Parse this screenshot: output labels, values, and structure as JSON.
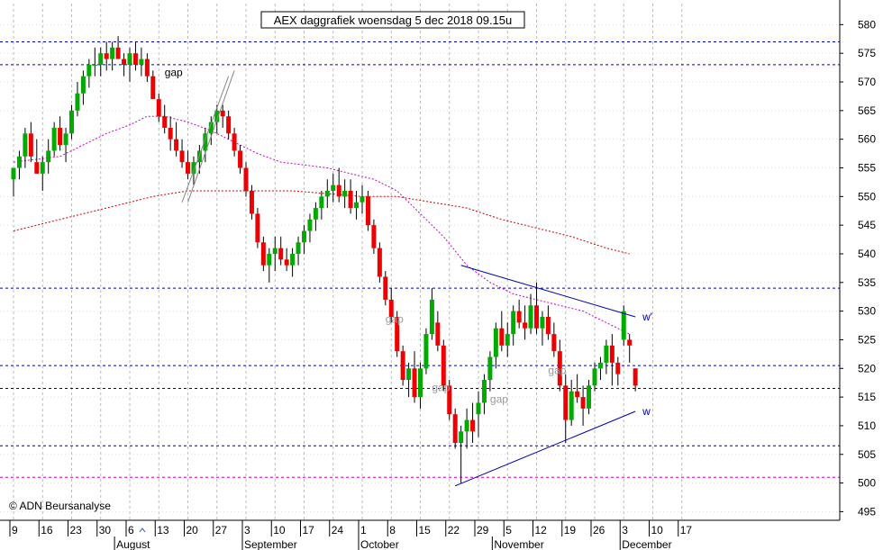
{
  "chart_data": {
    "type": "candlestick",
    "title": "AEX daggrafiek woensdag 5 dec 2018 09.15u",
    "copyright": "© ADN Beursanalyse",
    "ylim": [
      492,
      585
    ],
    "y_ticks": [
      495,
      500,
      505,
      510,
      515,
      520,
      525,
      530,
      535,
      540,
      545,
      550,
      555,
      560,
      565,
      570,
      575,
      580
    ],
    "x_day_ticks": [
      {
        "label": "9",
        "i": 0
      },
      {
        "label": "16",
        "i": 5
      },
      {
        "label": "23",
        "i": 10
      },
      {
        "label": "30",
        "i": 15
      },
      {
        "label": "6",
        "i": 20
      },
      {
        "label": "13",
        "i": 25
      },
      {
        "label": "20",
        "i": 30
      },
      {
        "label": "27",
        "i": 35
      },
      {
        "label": "3",
        "i": 40
      },
      {
        "label": "10",
        "i": 45
      },
      {
        "label": "17",
        "i": 50
      },
      {
        "label": "24",
        "i": 55
      },
      {
        "label": "1",
        "i": 60
      },
      {
        "label": "8",
        "i": 65
      },
      {
        "label": "15",
        "i": 70
      },
      {
        "label": "22",
        "i": 75
      },
      {
        "label": "29",
        "i": 80
      },
      {
        "label": "5",
        "i": 85
      },
      {
        "label": "12",
        "i": 90
      },
      {
        "label": "19",
        "i": 95
      },
      {
        "label": "26",
        "i": 100
      },
      {
        "label": "3",
        "i": 105
      },
      {
        "label": "10",
        "i": 110
      },
      {
        "label": "17",
        "i": 115
      }
    ],
    "x_month_ticks": [
      {
        "label": "August",
        "i": 18
      },
      {
        "label": "September",
        "i": 40
      },
      {
        "label": "October",
        "i": 60
      },
      {
        "label": "November",
        "i": 83
      },
      {
        "label": "December",
        "i": 105
      }
    ],
    "candles": [
      {
        "o": 553,
        "h": 555,
        "l": 550,
        "c": 555
      },
      {
        "o": 555,
        "h": 558,
        "l": 553,
        "c": 557
      },
      {
        "o": 557,
        "h": 562,
        "l": 555,
        "c": 561
      },
      {
        "o": 561,
        "h": 563,
        "l": 556,
        "c": 557
      },
      {
        "o": 556,
        "h": 560,
        "l": 554,
        "c": 554
      },
      {
        "o": 554,
        "h": 557,
        "l": 551,
        "c": 556
      },
      {
        "o": 556,
        "h": 560,
        "l": 554,
        "c": 558
      },
      {
        "o": 558,
        "h": 563,
        "l": 557,
        "c": 562
      },
      {
        "o": 562,
        "h": 564,
        "l": 558,
        "c": 559
      },
      {
        "o": 559,
        "h": 562,
        "l": 556,
        "c": 561
      },
      {
        "o": 561,
        "h": 566,
        "l": 560,
        "c": 565
      },
      {
        "o": 565,
        "h": 570,
        "l": 564,
        "c": 568
      },
      {
        "o": 568,
        "h": 572,
        "l": 566,
        "c": 571
      },
      {
        "o": 571,
        "h": 574,
        "l": 569,
        "c": 573
      },
      {
        "o": 573,
        "h": 576,
        "l": 571,
        "c": 573
      },
      {
        "o": 573,
        "h": 576,
        "l": 571,
        "c": 575
      },
      {
        "o": 575,
        "h": 577,
        "l": 572,
        "c": 574
      },
      {
        "o": 574,
        "h": 577,
        "l": 572,
        "c": 576
      },
      {
        "o": 576,
        "h": 578,
        "l": 574,
        "c": 574
      },
      {
        "o": 574,
        "h": 575,
        "l": 571,
        "c": 573
      },
      {
        "o": 573,
        "h": 576,
        "l": 570,
        "c": 575
      },
      {
        "o": 575,
        "h": 577,
        "l": 572,
        "c": 573
      },
      {
        "o": 573,
        "h": 576,
        "l": 571,
        "c": 574
      },
      {
        "o": 574,
        "h": 575,
        "l": 570,
        "c": 571
      },
      {
        "o": 571,
        "h": 572,
        "l": 567,
        "c": 567
      },
      {
        "o": 567,
        "h": 568,
        "l": 563,
        "c": 564
      },
      {
        "o": 564,
        "h": 566,
        "l": 561,
        "c": 562
      },
      {
        "o": 562,
        "h": 564,
        "l": 558,
        "c": 560
      },
      {
        "o": 560,
        "h": 563,
        "l": 557,
        "c": 558
      },
      {
        "o": 558,
        "h": 560,
        "l": 555,
        "c": 556
      },
      {
        "o": 556,
        "h": 558,
        "l": 553,
        "c": 554
      },
      {
        "o": 554,
        "h": 557,
        "l": 552,
        "c": 556
      },
      {
        "o": 556,
        "h": 559,
        "l": 554,
        "c": 558
      },
      {
        "o": 558,
        "h": 562,
        "l": 556,
        "c": 561
      },
      {
        "o": 561,
        "h": 564,
        "l": 559,
        "c": 563
      },
      {
        "o": 563,
        "h": 566,
        "l": 561,
        "c": 565
      },
      {
        "o": 565,
        "h": 566,
        "l": 562,
        "c": 564
      },
      {
        "o": 564,
        "h": 565,
        "l": 560,
        "c": 561
      },
      {
        "o": 561,
        "h": 562,
        "l": 557,
        "c": 558
      },
      {
        "o": 558,
        "h": 559,
        "l": 554,
        "c": 555
      },
      {
        "o": 555,
        "h": 556,
        "l": 550,
        "c": 551
      },
      {
        "o": 551,
        "h": 552,
        "l": 546,
        "c": 547
      },
      {
        "o": 547,
        "h": 548,
        "l": 541,
        "c": 542
      },
      {
        "o": 542,
        "h": 543,
        "l": 537,
        "c": 538
      },
      {
        "o": 538,
        "h": 541,
        "l": 535,
        "c": 540
      },
      {
        "o": 540,
        "h": 543,
        "l": 537,
        "c": 541
      },
      {
        "o": 541,
        "h": 543,
        "l": 538,
        "c": 539
      },
      {
        "o": 539,
        "h": 541,
        "l": 537,
        "c": 538
      },
      {
        "o": 538,
        "h": 541,
        "l": 536,
        "c": 540
      },
      {
        "o": 540,
        "h": 543,
        "l": 538,
        "c": 542
      },
      {
        "o": 542,
        "h": 545,
        "l": 540,
        "c": 544
      },
      {
        "o": 544,
        "h": 547,
        "l": 542,
        "c": 546
      },
      {
        "o": 546,
        "h": 549,
        "l": 544,
        "c": 548
      },
      {
        "o": 548,
        "h": 551,
        "l": 546,
        "c": 550
      },
      {
        "o": 550,
        "h": 553,
        "l": 548,
        "c": 551
      },
      {
        "o": 551,
        "h": 554,
        "l": 549,
        "c": 552
      },
      {
        "o": 552,
        "h": 555,
        "l": 549,
        "c": 550
      },
      {
        "o": 550,
        "h": 553,
        "l": 548,
        "c": 551
      },
      {
        "o": 551,
        "h": 553,
        "l": 547,
        "c": 548
      },
      {
        "o": 548,
        "h": 551,
        "l": 546,
        "c": 549
      },
      {
        "o": 549,
        "h": 552,
        "l": 547,
        "c": 550
      },
      {
        "o": 550,
        "h": 551,
        "l": 544,
        "c": 545
      },
      {
        "o": 545,
        "h": 546,
        "l": 540,
        "c": 541
      },
      {
        "o": 541,
        "h": 542,
        "l": 535,
        "c": 536
      },
      {
        "o": 536,
        "h": 537,
        "l": 531,
        "c": 532
      },
      {
        "o": 532,
        "h": 534,
        "l": 528,
        "c": 529
      },
      {
        "o": 529,
        "h": 530,
        "l": 522,
        "c": 523
      },
      {
        "o": 523,
        "h": 524,
        "l": 517,
        "c": 518
      },
      {
        "o": 518,
        "h": 521,
        "l": 515,
        "c": 520
      },
      {
        "o": 520,
        "h": 523,
        "l": 514,
        "c": 515
      },
      {
        "o": 515,
        "h": 521,
        "l": 513,
        "c": 520
      },
      {
        "o": 520,
        "h": 527,
        "l": 519,
        "c": 526
      },
      {
        "o": 526,
        "h": 534,
        "l": 525,
        "c": 532
      },
      {
        "o": 528,
        "h": 530,
        "l": 523,
        "c": 524
      },
      {
        "o": 524,
        "h": 525,
        "l": 516,
        "c": 517
      },
      {
        "o": 517,
        "h": 518,
        "l": 511,
        "c": 512
      },
      {
        "o": 512,
        "h": 513,
        "l": 506,
        "c": 507
      },
      {
        "o": 507,
        "h": 510,
        "l": 500,
        "c": 509
      },
      {
        "o": 509,
        "h": 513,
        "l": 506,
        "c": 511
      },
      {
        "o": 511,
        "h": 514,
        "l": 507,
        "c": 509
      },
      {
        "o": 512,
        "h": 516,
        "l": 508,
        "c": 514
      },
      {
        "o": 514,
        "h": 519,
        "l": 512,
        "c": 518
      },
      {
        "o": 518,
        "h": 523,
        "l": 516,
        "c": 522
      },
      {
        "o": 522,
        "h": 528,
        "l": 520,
        "c": 527
      },
      {
        "o": 527,
        "h": 530,
        "l": 523,
        "c": 524
      },
      {
        "o": 524,
        "h": 528,
        "l": 522,
        "c": 526
      },
      {
        "o": 526,
        "h": 531,
        "l": 524,
        "c": 530
      },
      {
        "o": 530,
        "h": 532,
        "l": 527,
        "c": 528
      },
      {
        "o": 528,
        "h": 531,
        "l": 525,
        "c": 527
      },
      {
        "o": 527,
        "h": 533,
        "l": 526,
        "c": 531
      },
      {
        "o": 531,
        "h": 535,
        "l": 526,
        "c": 527
      },
      {
        "o": 527,
        "h": 530,
        "l": 524,
        "c": 529
      },
      {
        "o": 529,
        "h": 531,
        "l": 525,
        "c": 526
      },
      {
        "o": 526,
        "h": 528,
        "l": 522,
        "c": 523
      },
      {
        "o": 523,
        "h": 525,
        "l": 516,
        "c": 517
      },
      {
        "o": 517,
        "h": 519,
        "l": 507,
        "c": 511
      },
      {
        "o": 511,
        "h": 518,
        "l": 510,
        "c": 516
      },
      {
        "o": 516,
        "h": 519,
        "l": 514,
        "c": 515
      },
      {
        "o": 515,
        "h": 517,
        "l": 510,
        "c": 513
      },
      {
        "o": 513,
        "h": 518,
        "l": 512,
        "c": 517
      },
      {
        "o": 517,
        "h": 521,
        "l": 516,
        "c": 520
      },
      {
        "o": 520,
        "h": 522,
        "l": 518,
        "c": 521
      },
      {
        "o": 521,
        "h": 525,
        "l": 519,
        "c": 524
      },
      {
        "o": 524,
        "h": 526,
        "l": 517,
        "c": 521
      },
      {
        "o": 521,
        "h": 522,
        "l": 517,
        "c": 519
      },
      {
        "o": 525,
        "h": 531,
        "l": 524,
        "c": 530
      },
      {
        "o": 525,
        "h": 526,
        "l": 521,
        "c": 524
      },
      {
        "o": 520,
        "h": 520,
        "l": 516,
        "c": 517
      }
    ],
    "ma_short_pink": [
      [
        0,
        556
      ],
      [
        8,
        557
      ],
      [
        12,
        559
      ],
      [
        16,
        561
      ],
      [
        20,
        562.5
      ],
      [
        23,
        564
      ],
      [
        26,
        564
      ],
      [
        30,
        563
      ],
      [
        34,
        561.5
      ],
      [
        38,
        559.5
      ],
      [
        42,
        557.5
      ],
      [
        46,
        556
      ],
      [
        50,
        555.5
      ],
      [
        54,
        555
      ],
      [
        58,
        554
      ],
      [
        62,
        553
      ],
      [
        66,
        551
      ],
      [
        70,
        547
      ],
      [
        74,
        543
      ],
      [
        78,
        538
      ],
      [
        82,
        535
      ],
      [
        86,
        533
      ],
      [
        90,
        532
      ],
      [
        94,
        531
      ],
      [
        98,
        530
      ],
      [
        102,
        528
      ],
      [
        106,
        526
      ]
    ],
    "ma_long_red": [
      [
        0,
        544
      ],
      [
        6,
        545.5
      ],
      [
        12,
        547
      ],
      [
        18,
        548.5
      ],
      [
        24,
        550
      ],
      [
        30,
        551
      ],
      [
        36,
        551
      ],
      [
        42,
        551
      ],
      [
        48,
        551
      ],
      [
        54,
        550.5
      ],
      [
        60,
        550
      ],
      [
        66,
        550
      ],
      [
        72,
        549
      ],
      [
        78,
        548
      ],
      [
        84,
        546
      ],
      [
        90,
        544.5
      ],
      [
        96,
        543
      ],
      [
        102,
        541
      ],
      [
        106,
        540
      ]
    ],
    "h_lines_blue": [
      577,
      573,
      534,
      520.5,
      516.5,
      506.5
    ],
    "h_line_pink": 501,
    "trendlines": [
      {
        "from": [
          77,
          538
        ],
        "to": [
          107,
          529
        ],
        "label": "w'"
      },
      {
        "from": [
          76,
          499.5
        ],
        "to": [
          107,
          512.5
        ],
        "label": "w"
      }
    ],
    "channel_gray": [
      {
        "from": [
          29,
          549
        ],
        "to": [
          37,
          571
        ]
      },
      {
        "from": [
          30,
          549
        ],
        "to": [
          38,
          572
        ]
      }
    ],
    "annotations": [
      {
        "text": "gap",
        "i": 26,
        "y": 571,
        "color": "#000000"
      },
      {
        "text": "gap",
        "i": 64,
        "y": 528,
        "color": "#999999"
      },
      {
        "text": "gap",
        "i": 72,
        "y": 516,
        "color": "#999999"
      },
      {
        "text": "gap",
        "i": 82,
        "y": 514,
        "color": "#999999"
      },
      {
        "text": "gap",
        "i": 92,
        "y": 519,
        "color": "#999999"
      }
    ],
    "colors": {
      "up": "#00aa00",
      "down": "#ee0000",
      "wick": "#000000",
      "grid": "#bbbbbb",
      "blue_lines": "#0000aa",
      "ma_short": "#cc00cc",
      "ma_long": "#cc0000",
      "channel": "#888888"
    },
    "grid": true
  }
}
